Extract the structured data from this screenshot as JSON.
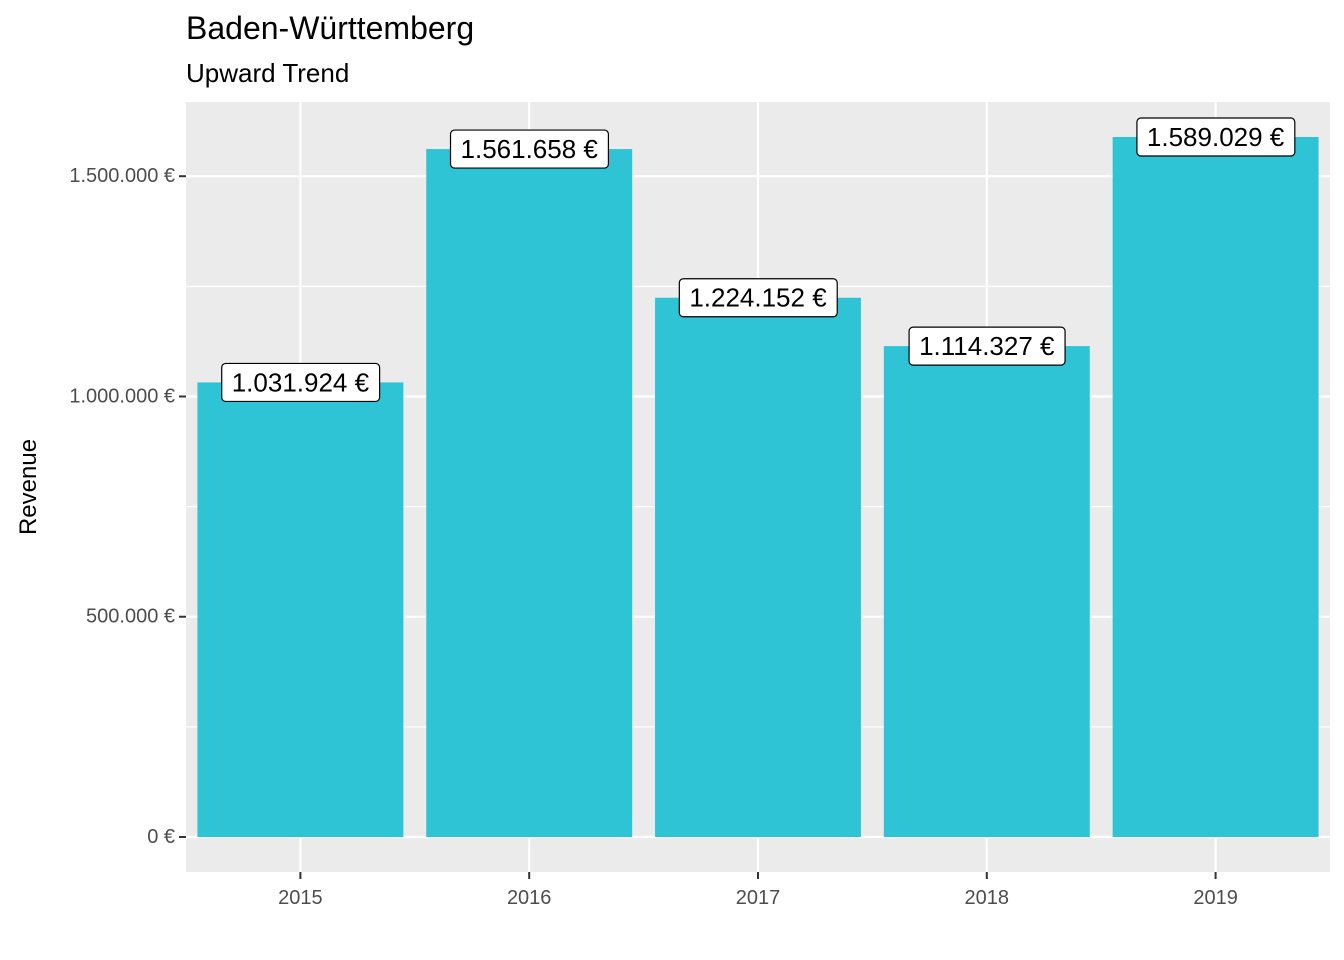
{
  "chart_data": {
    "type": "bar",
    "title": "Baden-Württemberg",
    "subtitle": "Upward Trend",
    "xlabel": "",
    "ylabel": "Revenue",
    "categories": [
      "2015",
      "2016",
      "2017",
      "2018",
      "2019"
    ],
    "values": [
      1031924,
      1561658,
      1224152,
      1114327,
      1589029
    ],
    "data_labels": [
      "1.031.924 €",
      "1.561.658 €",
      "1.224.152 €",
      "1.114.327 €",
      "1.589.029 €"
    ],
    "y_ticks": [
      0,
      500000,
      1000000,
      1500000
    ],
    "y_tick_labels": [
      "0 €",
      "500.000 €",
      "1.000.000 €",
      "1.500.000 €"
    ],
    "ylim": [
      -79450,
      1668480
    ],
    "grid": true,
    "legend": "none",
    "colors": {
      "bar": "#2EC4D6",
      "panel": "#EBEBEB",
      "grid": "#FFFFFF"
    }
  }
}
